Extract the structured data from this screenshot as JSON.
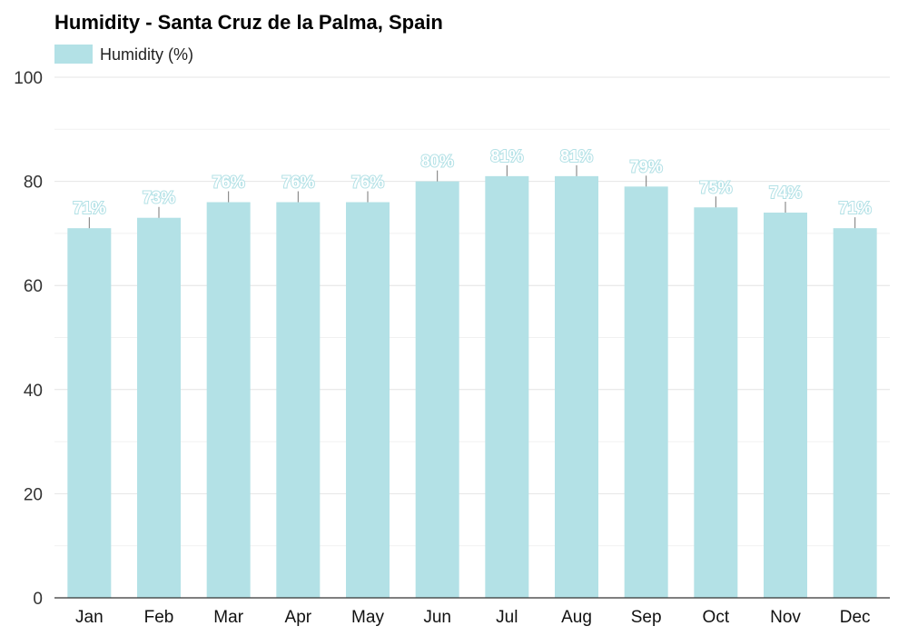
{
  "chart_data": {
    "type": "bar",
    "title": "Humidity - Santa Cruz de la Palma, Spain",
    "legend": {
      "label": "Humidity (%)",
      "placement": "top-left"
    },
    "categories": [
      "Jan",
      "Feb",
      "Mar",
      "Apr",
      "May",
      "Jun",
      "Jul",
      "Aug",
      "Sep",
      "Oct",
      "Nov",
      "Dec"
    ],
    "series": [
      {
        "name": "Humidity (%)",
        "values": [
          71,
          73,
          76,
          76,
          76,
          80,
          81,
          81,
          79,
          75,
          74,
          71
        ],
        "labels": [
          "71%",
          "73%",
          "76%",
          "76%",
          "76%",
          "80%",
          "81%",
          "81%",
          "79%",
          "75%",
          "74%",
          "71%"
        ]
      }
    ],
    "ylim": [
      0,
      100
    ],
    "yticks": [
      0,
      20,
      40,
      60,
      80,
      100
    ],
    "grid": true,
    "xlabel": "",
    "ylabel": ""
  },
  "colors": {
    "bar": "#b3e1e6",
    "label_outline": "#b3e1e6"
  }
}
